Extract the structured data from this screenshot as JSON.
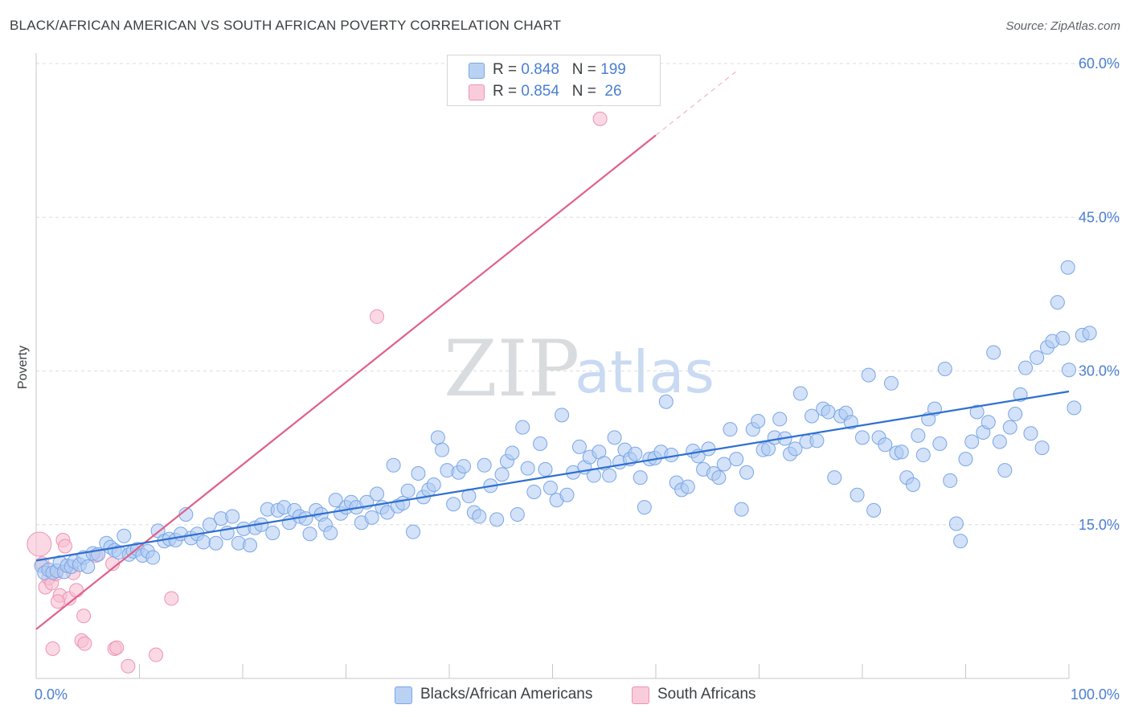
{
  "header": {
    "title": "BLACK/AFRICAN AMERICAN VS SOUTH AFRICAN POVERTY CORRELATION CHART",
    "source": "Source: ZipAtlas.com"
  },
  "watermark": {
    "zip": "ZIP",
    "atlas": "atlas"
  },
  "legend": {
    "rows": [
      {
        "r_label": "R = ",
        "r_value": "0.848",
        "n_label": "N = ",
        "n_value": "199"
      },
      {
        "r_label": "R = ",
        "r_value": "0.854",
        "n_label": "N = ",
        "n_value": " 26"
      }
    ],
    "bottom": [
      "Blacks/African Americans",
      "South Africans"
    ]
  },
  "chart_data": {
    "type": "scatter",
    "title": "BLACK/AFRICAN AMERICAN VS SOUTH AFRICAN POVERTY CORRELATION CHART",
    "xlabel": "",
    "ylabel": "Poverty",
    "xlim": [
      0,
      100
    ],
    "ylim": [
      0,
      60
    ],
    "x_tick_labels": [
      "0.0%",
      "100.0%"
    ],
    "y_ticks": [
      15,
      30,
      45,
      60
    ],
    "y_tick_labels": [
      "15.0%",
      "30.0%",
      "45.0%",
      "60.0%"
    ],
    "grid": true,
    "legend_position": "top-center",
    "colors": {
      "blue_fill": "#aecbf2",
      "blue_stroke": "#7aa6e6",
      "blue_line": "#2f6fd1",
      "pink_fill": "#f7bfd2",
      "pink_stroke": "#ee93b3",
      "pink_line": "#e0608a",
      "grid": "#dcdcdc",
      "tick_text": "#4a7fd1"
    },
    "series": [
      {
        "name": "Blacks/African Americans",
        "R": 0.848,
        "N": 199,
        "trend": {
          "x": [
            0,
            100
          ],
          "y": [
            11.5,
            28.0
          ]
        },
        "points": [
          [
            0.5,
            11.0
          ],
          [
            0.8,
            10.3
          ],
          [
            1.2,
            10.6
          ],
          [
            1.6,
            10.3
          ],
          [
            2.0,
            10.5
          ],
          [
            2.3,
            11.3
          ],
          [
            2.7,
            10.4
          ],
          [
            3.0,
            11.0
          ],
          [
            3.4,
            10.9
          ],
          [
            3.7,
            11.4
          ],
          [
            4.2,
            11.1
          ],
          [
            4.6,
            11.8
          ],
          [
            5.0,
            10.9
          ],
          [
            5.5,
            12.2
          ],
          [
            6.0,
            12.1
          ],
          [
            6.8,
            13.2
          ],
          [
            7.2,
            12.8
          ],
          [
            7.6,
            12.5
          ],
          [
            8.0,
            12.3
          ],
          [
            8.5,
            13.9
          ],
          [
            9.0,
            12.1
          ],
          [
            9.4,
            12.4
          ],
          [
            9.8,
            12.6
          ],
          [
            10.3,
            12.0
          ],
          [
            10.8,
            12.4
          ],
          [
            11.3,
            11.8
          ],
          [
            11.8,
            14.4
          ],
          [
            12.4,
            13.4
          ],
          [
            12.9,
            13.6
          ],
          [
            13.5,
            13.5
          ],
          [
            14.0,
            14.1
          ],
          [
            14.5,
            16.0
          ],
          [
            15.0,
            13.7
          ],
          [
            15.6,
            14.1
          ],
          [
            16.2,
            13.3
          ],
          [
            16.8,
            15.0
          ],
          [
            17.4,
            13.2
          ],
          [
            17.9,
            15.6
          ],
          [
            18.5,
            14.2
          ],
          [
            19.0,
            15.8
          ],
          [
            19.6,
            13.2
          ],
          [
            20.1,
            14.6
          ],
          [
            20.7,
            13.0
          ],
          [
            21.2,
            14.7
          ],
          [
            21.8,
            15.0
          ],
          [
            22.4,
            16.5
          ],
          [
            22.9,
            14.2
          ],
          [
            23.4,
            16.4
          ],
          [
            24.0,
            16.7
          ],
          [
            24.5,
            15.2
          ],
          [
            25.0,
            16.4
          ],
          [
            25.5,
            15.8
          ],
          [
            26.1,
            15.6
          ],
          [
            26.5,
            14.1
          ],
          [
            27.1,
            16.4
          ],
          [
            27.6,
            16.0
          ],
          [
            28.0,
            15.0
          ],
          [
            28.5,
            14.2
          ],
          [
            29.0,
            17.4
          ],
          [
            29.5,
            16.1
          ],
          [
            30.0,
            16.7
          ],
          [
            30.5,
            17.2
          ],
          [
            31.0,
            16.7
          ],
          [
            31.5,
            15.2
          ],
          [
            32.0,
            17.2
          ],
          [
            32.5,
            15.7
          ],
          [
            33.0,
            18.0
          ],
          [
            33.5,
            16.7
          ],
          [
            34.0,
            16.2
          ],
          [
            34.6,
            20.8
          ],
          [
            35.0,
            16.8
          ],
          [
            35.5,
            17.1
          ],
          [
            36.0,
            18.3
          ],
          [
            36.5,
            14.3
          ],
          [
            37.0,
            20.0
          ],
          [
            37.5,
            17.7
          ],
          [
            38.0,
            18.4
          ],
          [
            38.5,
            18.9
          ],
          [
            38.9,
            23.5
          ],
          [
            39.3,
            22.3
          ],
          [
            39.8,
            20.3
          ],
          [
            40.4,
            17.0
          ],
          [
            40.9,
            20.1
          ],
          [
            41.4,
            20.7
          ],
          [
            41.9,
            17.8
          ],
          [
            42.4,
            16.2
          ],
          [
            42.9,
            15.8
          ],
          [
            43.4,
            20.8
          ],
          [
            44.0,
            18.8
          ],
          [
            44.6,
            15.5
          ],
          [
            45.1,
            19.9
          ],
          [
            45.6,
            21.2
          ],
          [
            46.1,
            22.0
          ],
          [
            46.6,
            16.0
          ],
          [
            47.1,
            24.5
          ],
          [
            47.6,
            20.5
          ],
          [
            48.2,
            18.2
          ],
          [
            48.8,
            22.9
          ],
          [
            49.3,
            20.4
          ],
          [
            49.8,
            18.6
          ],
          [
            50.4,
            17.4
          ],
          [
            50.9,
            25.7
          ],
          [
            51.4,
            17.9
          ],
          [
            52.0,
            20.1
          ],
          [
            52.6,
            22.6
          ],
          [
            53.1,
            20.6
          ],
          [
            53.6,
            21.6
          ],
          [
            54.0,
            19.8
          ],
          [
            54.5,
            22.1
          ],
          [
            55.0,
            21.0
          ],
          [
            55.5,
            19.8
          ],
          [
            56.0,
            23.5
          ],
          [
            56.5,
            21.1
          ],
          [
            57.0,
            22.3
          ],
          [
            57.5,
            21.4
          ],
          [
            58.0,
            21.9
          ],
          [
            58.5,
            19.6
          ],
          [
            58.9,
            16.7
          ],
          [
            59.4,
            21.4
          ],
          [
            59.9,
            21.5
          ],
          [
            60.5,
            22.1
          ],
          [
            61.0,
            27.0
          ],
          [
            61.5,
            21.8
          ],
          [
            62.0,
            19.1
          ],
          [
            62.5,
            18.4
          ],
          [
            63.1,
            18.7
          ],
          [
            63.6,
            22.2
          ],
          [
            64.1,
            21.7
          ],
          [
            64.6,
            20.4
          ],
          [
            65.1,
            22.4
          ],
          [
            65.6,
            20.0
          ],
          [
            66.1,
            19.6
          ],
          [
            66.6,
            20.9
          ],
          [
            67.2,
            24.3
          ],
          [
            67.8,
            21.4
          ],
          [
            68.3,
            16.5
          ],
          [
            68.8,
            20.1
          ],
          [
            69.4,
            24.3
          ],
          [
            69.9,
            25.1
          ],
          [
            70.4,
            22.3
          ],
          [
            70.9,
            22.4
          ],
          [
            71.5,
            23.5
          ],
          [
            72.0,
            25.3
          ],
          [
            72.5,
            23.4
          ],
          [
            73.0,
            21.9
          ],
          [
            73.5,
            22.4
          ],
          [
            74.0,
            27.8
          ],
          [
            74.6,
            23.1
          ],
          [
            75.1,
            25.6
          ],
          [
            75.6,
            23.2
          ],
          [
            76.2,
            26.3
          ],
          [
            76.7,
            26.0
          ],
          [
            77.3,
            19.6
          ],
          [
            77.9,
            25.6
          ],
          [
            78.4,
            25.9
          ],
          [
            78.9,
            25.0
          ],
          [
            79.5,
            17.9
          ],
          [
            80.0,
            23.5
          ],
          [
            80.6,
            29.6
          ],
          [
            81.1,
            16.4
          ],
          [
            81.6,
            23.5
          ],
          [
            82.2,
            22.8
          ],
          [
            82.8,
            28.8
          ],
          [
            83.3,
            22.0
          ],
          [
            83.8,
            22.1
          ],
          [
            84.3,
            19.6
          ],
          [
            84.9,
            18.9
          ],
          [
            85.4,
            23.7
          ],
          [
            85.9,
            21.8
          ],
          [
            86.4,
            25.3
          ],
          [
            87.0,
            26.3
          ],
          [
            87.5,
            22.9
          ],
          [
            88.0,
            30.2
          ],
          [
            88.5,
            19.3
          ],
          [
            89.1,
            15.1
          ],
          [
            89.5,
            13.4
          ],
          [
            90.0,
            21.4
          ],
          [
            90.6,
            23.1
          ],
          [
            91.1,
            26.0
          ],
          [
            91.7,
            24.0
          ],
          [
            92.2,
            25.0
          ],
          [
            92.7,
            31.8
          ],
          [
            93.3,
            23.1
          ],
          [
            93.8,
            20.3
          ],
          [
            94.3,
            24.5
          ],
          [
            94.8,
            25.8
          ],
          [
            95.3,
            27.7
          ],
          [
            95.8,
            30.3
          ],
          [
            96.3,
            23.9
          ],
          [
            96.9,
            31.3
          ],
          [
            97.4,
            22.5
          ],
          [
            97.9,
            32.3
          ],
          [
            98.4,
            32.9
          ],
          [
            98.9,
            36.7
          ],
          [
            99.4,
            33.2
          ],
          [
            100.0,
            30.1
          ],
          [
            100.5,
            26.4
          ],
          [
            101.3,
            33.5
          ],
          [
            102.0,
            33.7
          ],
          [
            99.9,
            40.1
          ]
        ]
      },
      {
        "name": "South Africans",
        "R": 0.854,
        "N": 26,
        "trend": {
          "x": [
            0,
            60
          ],
          "y": [
            4.8,
            53.0
          ]
        },
        "trend_dashed": {
          "x": [
            60,
            68
          ],
          "y": [
            53.0,
            59.4
          ]
        },
        "points": [
          [
            0.3,
            13.1
          ],
          [
            0.6,
            11.2
          ],
          [
            0.9,
            8.9
          ],
          [
            1.2,
            9.8
          ],
          [
            1.5,
            9.3
          ],
          [
            1.9,
            10.2
          ],
          [
            2.3,
            8.1
          ],
          [
            2.6,
            13.5
          ],
          [
            2.8,
            12.9
          ],
          [
            3.2,
            7.8
          ],
          [
            3.6,
            10.3
          ],
          [
            3.9,
            8.6
          ],
          [
            4.4,
            3.7
          ],
          [
            4.6,
            6.1
          ],
          [
            4.7,
            3.4
          ],
          [
            5.8,
            12.0
          ],
          [
            7.4,
            11.2
          ],
          [
            7.6,
            2.9
          ],
          [
            7.8,
            3.0
          ],
          [
            8.9,
            1.2
          ],
          [
            11.6,
            2.3
          ],
          [
            13.1,
            7.8
          ],
          [
            33.0,
            35.3
          ],
          [
            54.6,
            54.6
          ],
          [
            1.6,
            2.9
          ],
          [
            2.1,
            7.5
          ]
        ]
      }
    ]
  }
}
